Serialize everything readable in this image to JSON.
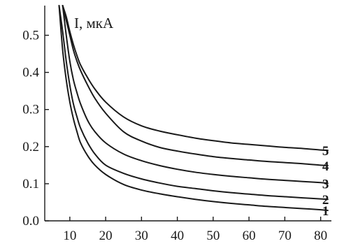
{
  "chart_data": {
    "type": "line",
    "title": "",
    "xlabel": "",
    "ylabel": "I, мкА",
    "xlim": [
      3,
      83
    ],
    "ylim": [
      0,
      0.58
    ],
    "xticks": [
      10,
      20,
      30,
      40,
      50,
      60,
      70,
      80
    ],
    "xtick_labels": [
      "10",
      "20",
      "30",
      "40",
      "50",
      "60",
      "70",
      "80"
    ],
    "yticks": [
      0.0,
      0.1,
      0.2,
      0.3,
      0.4,
      0.5
    ],
    "ytick_labels": [
      "0.0",
      "0.1",
      "0.2",
      "0.3",
      "0.4",
      "0.5"
    ],
    "grid": false,
    "legend": "none",
    "line_color": "#1a1a1a",
    "series": [
      {
        "name": "1",
        "x": [
          7,
          8,
          9,
          10,
          11,
          12,
          13,
          15,
          17,
          20,
          25,
          30,
          35,
          40,
          45,
          50,
          55,
          60,
          65,
          70,
          75,
          80,
          82
        ],
        "y": [
          0.58,
          0.46,
          0.38,
          0.32,
          0.275,
          0.24,
          0.21,
          0.175,
          0.15,
          0.125,
          0.098,
          0.083,
          0.073,
          0.065,
          0.058,
          0.052,
          0.047,
          0.043,
          0.039,
          0.036,
          0.033,
          0.03,
          0.028
        ]
      },
      {
        "name": "2",
        "x": [
          7,
          8,
          9,
          10,
          11,
          12,
          13,
          15,
          17,
          20,
          25,
          30,
          35,
          40,
          45,
          50,
          55,
          60,
          65,
          70,
          75,
          80,
          82
        ],
        "y": [
          0.58,
          0.51,
          0.43,
          0.365,
          0.315,
          0.28,
          0.25,
          0.21,
          0.18,
          0.15,
          0.128,
          0.113,
          0.102,
          0.093,
          0.087,
          0.081,
          0.076,
          0.072,
          0.068,
          0.065,
          0.062,
          0.059,
          0.058
        ]
      },
      {
        "name": "3",
        "x": [
          8,
          9,
          10,
          11,
          12,
          13,
          15,
          17,
          20,
          25,
          30,
          35,
          40,
          45,
          50,
          55,
          60,
          65,
          70,
          75,
          80,
          82
        ],
        "y": [
          0.58,
          0.5,
          0.43,
          0.38,
          0.345,
          0.315,
          0.27,
          0.24,
          0.21,
          0.18,
          0.162,
          0.149,
          0.139,
          0.131,
          0.125,
          0.12,
          0.116,
          0.112,
          0.109,
          0.106,
          0.103,
          0.101
        ]
      },
      {
        "name": "4",
        "x": [
          8,
          9,
          10,
          11,
          12,
          13,
          15,
          17,
          20,
          25,
          30,
          35,
          40,
          45,
          50,
          55,
          60,
          65,
          70,
          75,
          80,
          82
        ],
        "y": [
          0.58,
          0.54,
          0.5,
          0.46,
          0.43,
          0.405,
          0.365,
          0.33,
          0.29,
          0.24,
          0.215,
          0.198,
          0.188,
          0.18,
          0.173,
          0.168,
          0.164,
          0.16,
          0.157,
          0.154,
          0.15,
          0.149
        ]
      },
      {
        "name": "5",
        "x": [
          8,
          9,
          10,
          11,
          12,
          13,
          15,
          17,
          20,
          25,
          30,
          35,
          40,
          45,
          50,
          55,
          60,
          65,
          70,
          75,
          80,
          82
        ],
        "y": [
          0.58,
          0.55,
          0.51,
          0.475,
          0.445,
          0.42,
          0.385,
          0.355,
          0.32,
          0.28,
          0.256,
          0.242,
          0.232,
          0.223,
          0.216,
          0.21,
          0.206,
          0.202,
          0.198,
          0.195,
          0.191,
          0.19
        ]
      }
    ]
  }
}
